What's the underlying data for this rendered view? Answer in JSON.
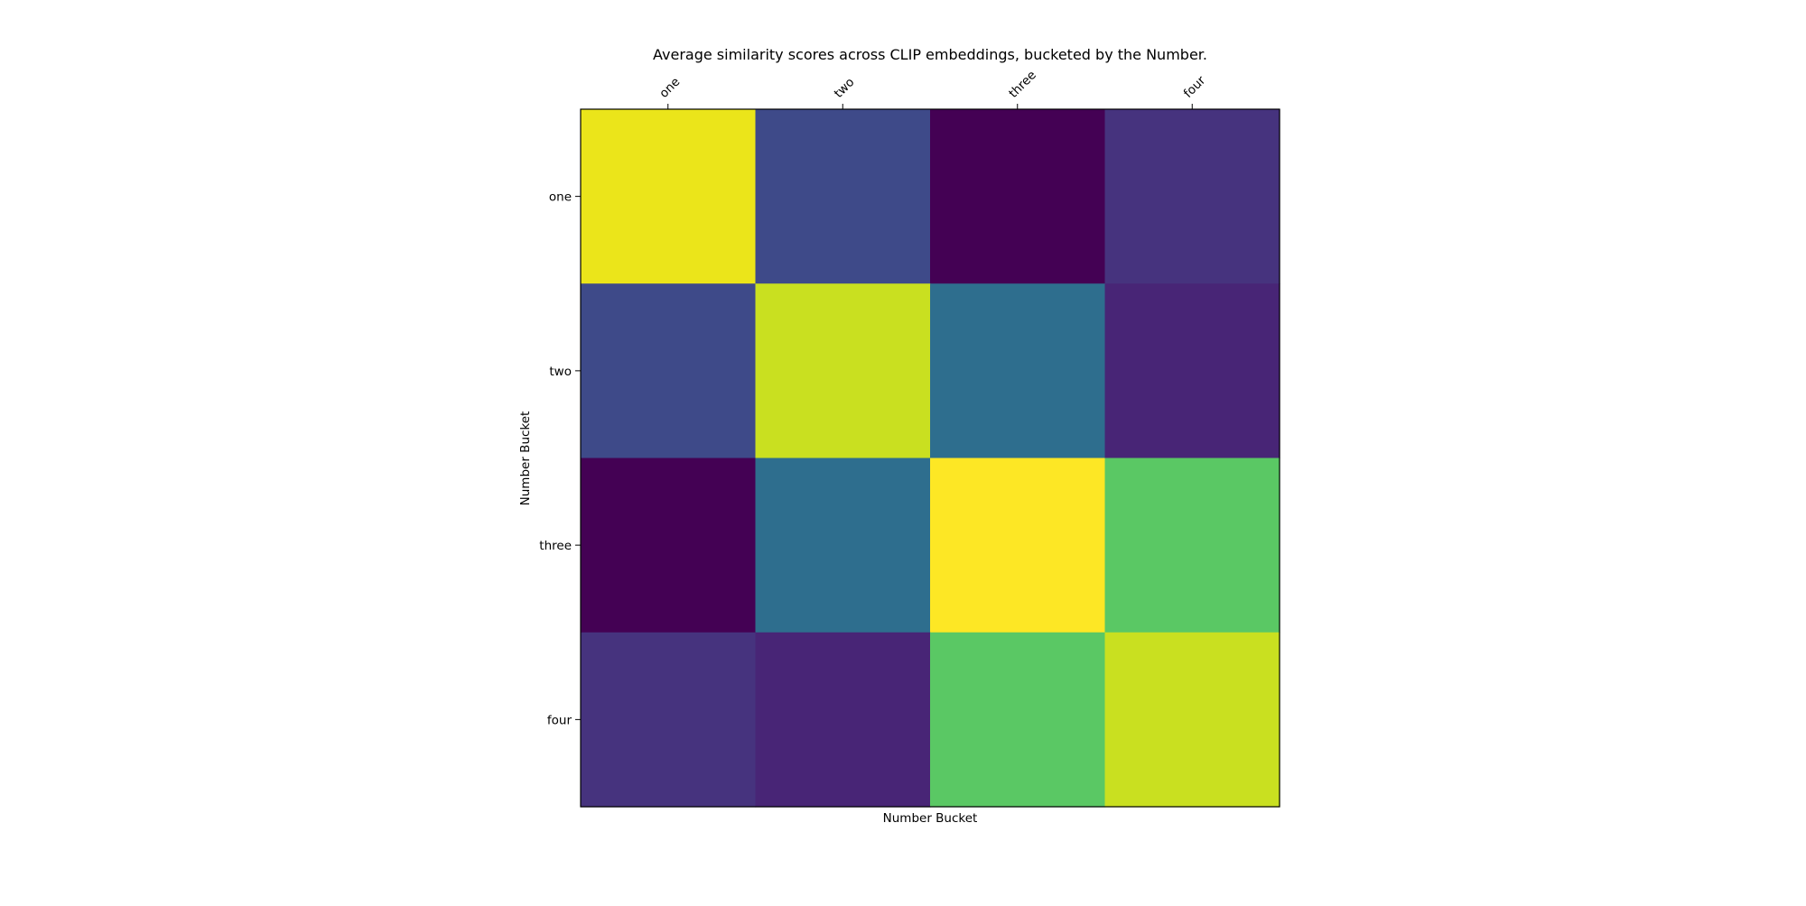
{
  "chart_data": {
    "type": "heatmap",
    "title": "Average similarity scores across CLIP embeddings, bucketed by the Number.",
    "xlabel": "Number Bucket",
    "ylabel": "Number Bucket",
    "x_categories": [
      "one",
      "two",
      "three",
      "four"
    ],
    "y_categories": [
      "one",
      "two",
      "three",
      "four"
    ],
    "x_tick_position": "top",
    "colormap": "viridis",
    "grid": false,
    "colorbar": false,
    "values": [
      [
        0.97,
        0.22,
        0.0,
        0.15
      ],
      [
        0.22,
        0.9,
        0.36,
        0.1
      ],
      [
        0.0,
        0.36,
        1.0,
        0.72
      ],
      [
        0.15,
        0.1,
        0.72,
        0.9
      ]
    ],
    "cell_colors": [
      [
        "#ebe51a",
        "#3e4a89",
        "#440154",
        "#46337e"
      ],
      [
        "#3e4a89",
        "#c9e020",
        "#2e6e8e",
        "#482576"
      ],
      [
        "#440154",
        "#2e6e8e",
        "#fde725",
        "#5ac864"
      ],
      [
        "#46337e",
        "#482576",
        "#5ac864",
        "#c9e020"
      ]
    ]
  }
}
